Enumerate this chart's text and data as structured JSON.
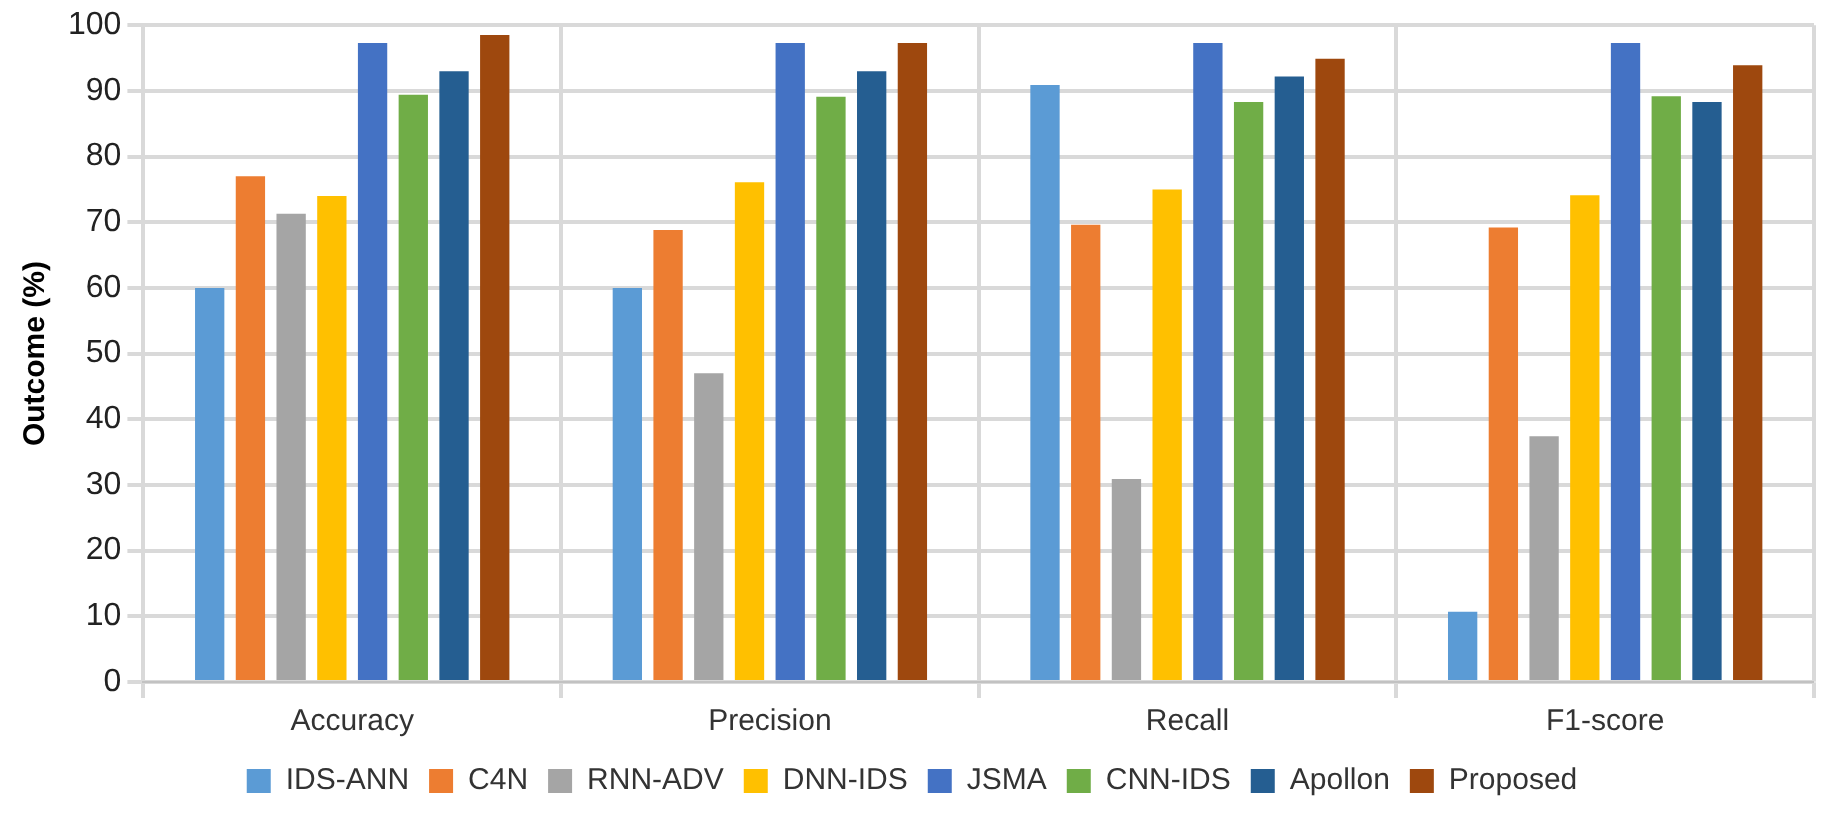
{
  "chart_data": {
    "type": "bar",
    "ylabel": "Outcome (%)",
    "categories": [
      "Accuracy",
      "Precision",
      "Recall",
      "F1-score"
    ],
    "series": [
      {
        "name": "IDS-ANN",
        "color": "#5b9bd5",
        "values": [
          60,
          60,
          90.9,
          10.7
        ]
      },
      {
        "name": "C4N",
        "color": "#ed7d31",
        "values": [
          77,
          68.8,
          69.6,
          69.2
        ]
      },
      {
        "name": "RNN-ADV",
        "color": "#a5a5a5",
        "values": [
          71.3,
          47,
          30.9,
          37.4
        ]
      },
      {
        "name": "DNN-IDS",
        "color": "#ffc000",
        "values": [
          74,
          76.1,
          75,
          74.1
        ]
      },
      {
        "name": "JSMA",
        "color": "#4472c4",
        "values": [
          97.3,
          97.3,
          97.3,
          97.3
        ]
      },
      {
        "name": "CNN-IDS",
        "color": "#70ad47",
        "values": [
          89.4,
          89.1,
          88.3,
          89.2
        ]
      },
      {
        "name": "Apollon",
        "color": "#255e91",
        "values": [
          93,
          93,
          92.2,
          88.3
        ]
      },
      {
        "name": "Proposed",
        "color": "#9e480e",
        "values": [
          98.5,
          97.3,
          94.9,
          93.9
        ]
      }
    ],
    "ylim": [
      0,
      100
    ],
    "yticks": [
      0,
      10,
      20,
      30,
      40,
      50,
      60,
      70,
      80,
      90,
      100
    ],
    "grid": true,
    "legend": "bottom"
  }
}
